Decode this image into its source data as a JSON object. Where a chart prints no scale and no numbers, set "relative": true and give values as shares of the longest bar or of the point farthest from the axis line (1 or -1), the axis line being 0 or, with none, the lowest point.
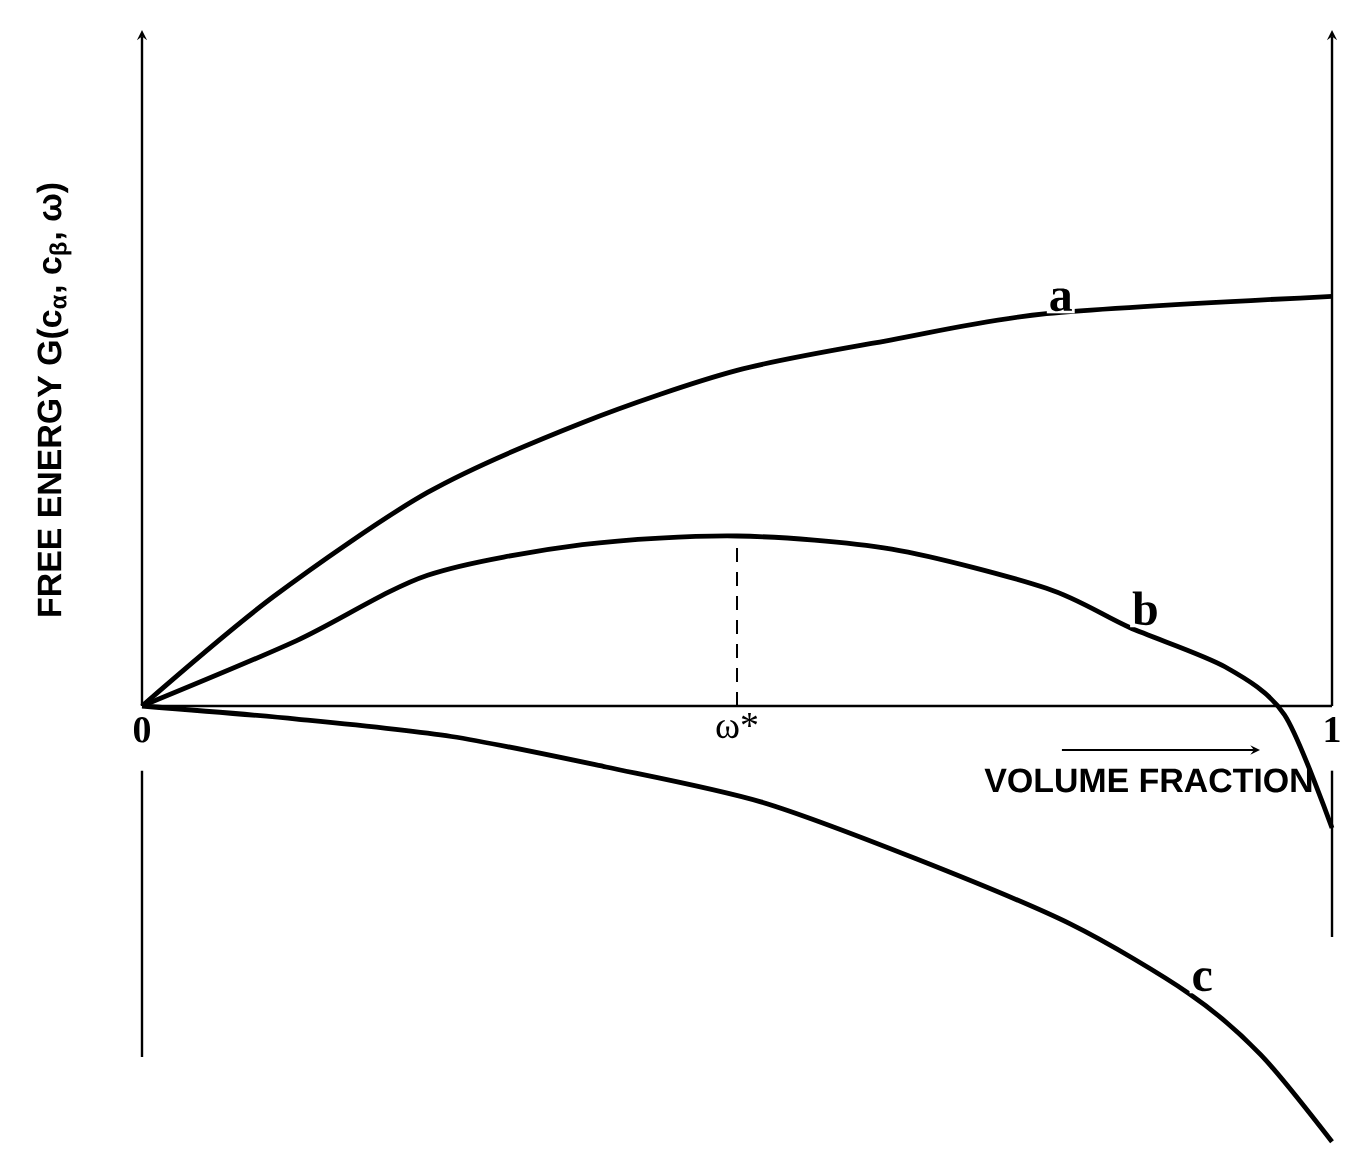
{
  "chart_data": {
    "type": "line",
    "relative": true,
    "xlabel": "VOLUME FRACTION",
    "ylabel": "FREE ENERGY G(c$_{α}$, c$_{β}$, ω)",
    "xlim": [
      0,
      1
    ],
    "xticks": [
      0,
      1
    ],
    "line_style": "solid",
    "grid": "x",
    "ref_lines": [
      {
        "axis": "x",
        "value": 0.5,
        "label": "ω*",
        "line_style": "dashed"
      }
    ],
    "series": [
      {
        "name": "a",
        "color": "#000000",
        "x": [
          0,
          0.11,
          0.24,
          0.37,
          0.5,
          0.63,
          0.76,
          1.0
        ],
        "values": [
          0,
          0.25,
          0.49,
          0.65,
          0.77,
          0.84,
          0.9,
          0.94
        ]
      },
      {
        "name": "b",
        "color": "#000000",
        "x": [
          0,
          0.13,
          0.24,
          0.37,
          0.5,
          0.63,
          0.76,
          0.83,
          0.91,
          0.96,
          1.0
        ],
        "values": [
          0,
          0.15,
          0.3,
          0.37,
          0.39,
          0.36,
          0.27,
          0.18,
          0.09,
          -0.02,
          -0.28
        ]
      },
      {
        "name": "c",
        "color": "#000000",
        "x": [
          0,
          0.13,
          0.26,
          0.39,
          0.52,
          0.65,
          0.78,
          0.88,
          0.94,
          1.0
        ],
        "values": [
          0,
          -0.03,
          -0.07,
          -0.14,
          -0.22,
          -0.35,
          -0.5,
          -0.66,
          -0.8,
          -1.0
        ]
      }
    ]
  }
}
